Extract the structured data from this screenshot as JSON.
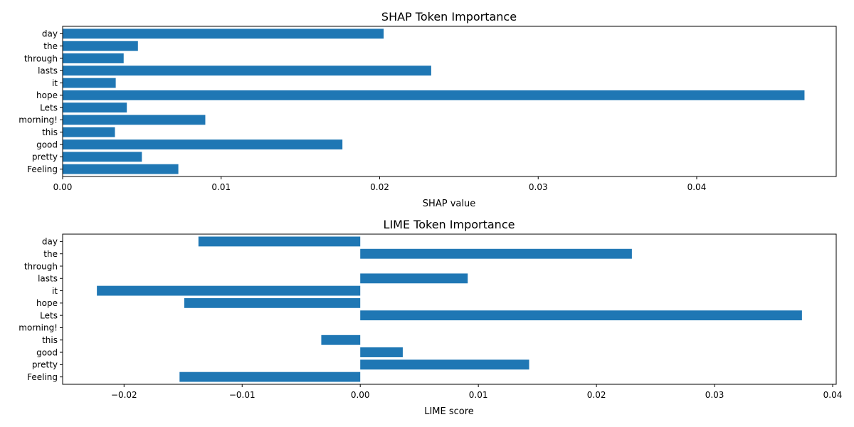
{
  "colors": {
    "bar": "#1f77b4",
    "axis": "#000000",
    "background": "#ffffff"
  },
  "chart_data": [
    {
      "type": "bar",
      "orientation": "horizontal",
      "title": "SHAP Token Importance",
      "xlabel": "SHAP value",
      "ylabel": "",
      "categories": [
        "Feeling",
        "pretty",
        "good",
        "this",
        "morning!",
        "Lets",
        "hope",
        "it",
        "lasts",
        "through",
        "the",
        "day"
      ],
      "values": [
        0.0073,
        0.005,
        0.01765,
        0.0033,
        0.009,
        0.00405,
        0.0468,
        0.00335,
        0.02325,
        0.00385,
        0.00475,
        0.02025
      ],
      "xlim": [
        0.0,
        0.0488
      ],
      "xticks": [
        0.0,
        0.01,
        0.02,
        0.03,
        0.04
      ],
      "xtick_labels": [
        "0.00",
        "0.01",
        "0.02",
        "0.03",
        "0.04"
      ],
      "grid": false,
      "legend": "none"
    },
    {
      "type": "bar",
      "orientation": "horizontal",
      "title": "LIME Token Importance",
      "xlabel": "LIME score",
      "ylabel": "",
      "categories": [
        "Feeling",
        "pretty",
        "good",
        "this",
        "morning!",
        "Lets",
        "hope",
        "it",
        "lasts",
        "through",
        "the",
        "day"
      ],
      "values": [
        -0.0153,
        0.0143,
        0.0036,
        -0.0033,
        0.0,
        0.0374,
        -0.0149,
        -0.0223,
        0.0091,
        0.0,
        0.023,
        -0.0137
      ],
      "xlim": [
        -0.0252,
        0.0403
      ],
      "xticks": [
        -0.02,
        -0.01,
        0.0,
        0.01,
        0.02,
        0.03,
        0.04
      ],
      "xtick_labels": [
        "−0.02",
        "−0.01",
        "0.00",
        "0.01",
        "0.02",
        "0.03",
        "0.04"
      ],
      "grid": false,
      "legend": "none"
    }
  ]
}
